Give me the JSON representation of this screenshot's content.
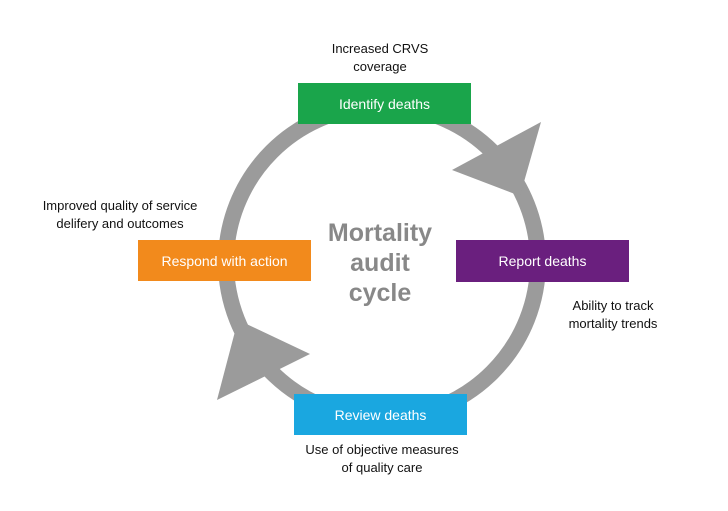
{
  "center_title_lines": [
    "Mortality",
    "audit",
    "cycle"
  ],
  "steps": [
    {
      "id": "identify",
      "label": "Identify deaths",
      "color": "#1aa54b",
      "outcome_lines": [
        "Increased CRVS",
        "coverage"
      ]
    },
    {
      "id": "report",
      "label": "Report deaths",
      "color": "#6a1f7e",
      "outcome_lines": [
        "Ability to track",
        "mortality trends"
      ]
    },
    {
      "id": "review",
      "label": "Review deaths",
      "color": "#1aa7e0",
      "outcome_lines": [
        "Use of objective measures",
        "of quality care"
      ]
    },
    {
      "id": "respond",
      "label": "Respond with action",
      "color": "#f28a1c",
      "outcome_lines": [
        "Improved quality of service",
        "delifery and outcomes"
      ]
    }
  ],
  "colors": {
    "ring": "#9b9b9b",
    "center_text": "#888888"
  }
}
